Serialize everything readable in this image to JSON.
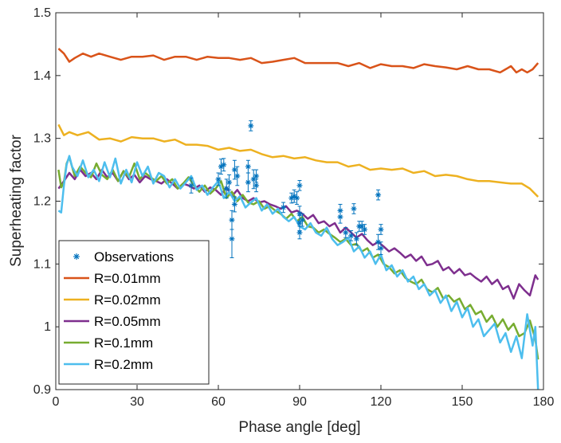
{
  "chart_data": {
    "type": "line",
    "xlabel": "Phase angle [deg]",
    "ylabel": "Superheating factor",
    "xlim": [
      0,
      180
    ],
    "ylim": [
      0.9,
      1.5
    ],
    "xticks": [
      0,
      30,
      60,
      90,
      120,
      150,
      180
    ],
    "yticks": [
      0.9,
      1,
      1.1,
      1.2,
      1.3,
      1.4,
      1.5
    ],
    "ytick_labels": [
      "0.9",
      "1",
      "1.1",
      "1.2",
      "1.3",
      "1.4",
      "1.5"
    ],
    "grid": false,
    "legend_position": "bottom-left",
    "series": [
      {
        "name": "R=0.01mm",
        "color": "#D95319",
        "x": [
          1,
          3,
          5,
          7,
          10,
          13,
          16,
          20,
          24,
          28,
          32,
          36,
          40,
          44,
          48,
          52,
          56,
          60,
          64,
          68,
          72,
          76,
          80,
          84,
          88,
          92,
          96,
          100,
          104,
          108,
          112,
          116,
          120,
          124,
          128,
          132,
          136,
          140,
          144,
          148,
          152,
          156,
          160,
          164,
          166,
          168,
          170,
          172,
          174,
          176,
          178
        ],
        "y": [
          1.443,
          1.435,
          1.422,
          1.428,
          1.435,
          1.43,
          1.435,
          1.43,
          1.425,
          1.43,
          1.43,
          1.432,
          1.425,
          1.43,
          1.43,
          1.425,
          1.43,
          1.428,
          1.428,
          1.425,
          1.428,
          1.42,
          1.422,
          1.425,
          1.428,
          1.42,
          1.42,
          1.42,
          1.42,
          1.415,
          1.42,
          1.412,
          1.418,
          1.415,
          1.415,
          1.412,
          1.418,
          1.415,
          1.413,
          1.41,
          1.415,
          1.41,
          1.41,
          1.405,
          1.41,
          1.415,
          1.405,
          1.41,
          1.405,
          1.41,
          1.42
        ]
      },
      {
        "name": "R=0.02mm",
        "color": "#EDB120",
        "x": [
          1,
          3,
          5,
          8,
          12,
          16,
          20,
          24,
          28,
          32,
          36,
          40,
          44,
          48,
          52,
          56,
          60,
          64,
          68,
          72,
          76,
          80,
          84,
          88,
          92,
          96,
          100,
          104,
          108,
          112,
          116,
          120,
          124,
          128,
          132,
          136,
          140,
          144,
          148,
          152,
          156,
          160,
          164,
          168,
          172,
          175,
          178
        ],
        "y": [
          1.322,
          1.305,
          1.31,
          1.305,
          1.31,
          1.298,
          1.3,
          1.295,
          1.302,
          1.3,
          1.3,
          1.295,
          1.298,
          1.29,
          1.29,
          1.288,
          1.282,
          1.285,
          1.28,
          1.282,
          1.275,
          1.27,
          1.272,
          1.268,
          1.27,
          1.265,
          1.262,
          1.262,
          1.255,
          1.258,
          1.25,
          1.252,
          1.25,
          1.252,
          1.245,
          1.248,
          1.24,
          1.242,
          1.24,
          1.235,
          1.232,
          1.232,
          1.23,
          1.228,
          1.228,
          1.22,
          1.207
        ]
      },
      {
        "name": "R=0.05mm",
        "color": "#7E2F8E",
        "x": [
          1,
          3,
          5,
          7,
          9,
          11,
          13,
          15,
          17,
          19,
          21,
          23,
          25,
          27,
          29,
          31,
          33,
          35,
          37,
          39,
          41,
          43,
          45,
          47,
          49,
          51,
          53,
          55,
          57,
          59,
          61,
          63,
          65,
          67,
          69,
          71,
          73,
          75,
          77,
          79,
          81,
          83,
          85,
          87,
          89,
          91,
          93,
          95,
          97,
          99,
          101,
          103,
          105,
          107,
          109,
          111,
          113,
          115,
          117,
          119,
          121,
          123,
          125,
          127,
          129,
          131,
          133,
          135,
          137,
          139,
          141,
          143,
          145,
          147,
          149,
          151,
          153,
          155,
          157,
          159,
          161,
          163,
          165,
          167,
          169,
          171,
          173,
          175,
          177,
          178
        ],
        "y": [
          1.22,
          1.232,
          1.245,
          1.235,
          1.25,
          1.24,
          1.245,
          1.235,
          1.25,
          1.238,
          1.245,
          1.232,
          1.248,
          1.235,
          1.242,
          1.23,
          1.24,
          1.235,
          1.232,
          1.228,
          1.235,
          1.228,
          1.22,
          1.228,
          1.225,
          1.22,
          1.225,
          1.215,
          1.222,
          1.218,
          1.21,
          1.222,
          1.208,
          1.218,
          1.205,
          1.2,
          1.205,
          1.198,
          1.2,
          1.195,
          1.192,
          1.188,
          1.192,
          1.182,
          1.185,
          1.18,
          1.172,
          1.178,
          1.165,
          1.168,
          1.16,
          1.165,
          1.15,
          1.158,
          1.15,
          1.142,
          1.148,
          1.138,
          1.13,
          1.135,
          1.128,
          1.12,
          1.125,
          1.118,
          1.11,
          1.115,
          1.105,
          1.112,
          1.098,
          1.1,
          1.105,
          1.09,
          1.095,
          1.085,
          1.092,
          1.082,
          1.085,
          1.078,
          1.072,
          1.08,
          1.068,
          1.075,
          1.06,
          1.065,
          1.045,
          1.068,
          1.058,
          1.05,
          1.082,
          1.075
        ]
      },
      {
        "name": "R=0.1mm",
        "color": "#77AC30",
        "x": [
          1,
          2,
          3,
          4,
          5,
          7,
          9,
          11,
          13,
          15,
          17,
          19,
          21,
          23,
          25,
          27,
          29,
          31,
          33,
          35,
          37,
          39,
          41,
          43,
          45,
          47,
          49,
          51,
          53,
          55,
          57,
          59,
          61,
          63,
          65,
          67,
          69,
          71,
          73,
          75,
          77,
          79,
          81,
          83,
          85,
          87,
          89,
          91,
          93,
          95,
          97,
          99,
          101,
          103,
          105,
          107,
          109,
          111,
          113,
          115,
          117,
          119,
          121,
          123,
          125,
          127,
          129,
          131,
          133,
          135,
          137,
          139,
          141,
          143,
          145,
          147,
          149,
          151,
          153,
          155,
          157,
          159,
          161,
          163,
          165,
          167,
          169,
          171,
          173,
          175,
          177,
          178
        ],
        "y": [
          1.25,
          1.222,
          1.23,
          1.26,
          1.27,
          1.24,
          1.255,
          1.245,
          1.238,
          1.26,
          1.242,
          1.235,
          1.25,
          1.232,
          1.248,
          1.238,
          1.26,
          1.235,
          1.245,
          1.238,
          1.232,
          1.24,
          1.228,
          1.235,
          1.22,
          1.228,
          1.238,
          1.225,
          1.215,
          1.225,
          1.212,
          1.22,
          1.232,
          1.205,
          1.215,
          1.2,
          1.21,
          1.198,
          1.195,
          1.2,
          1.188,
          1.192,
          1.185,
          1.18,
          1.172,
          1.18,
          1.168,
          1.175,
          1.16,
          1.158,
          1.15,
          1.155,
          1.148,
          1.142,
          1.135,
          1.14,
          1.13,
          1.132,
          1.12,
          1.125,
          1.11,
          1.115,
          1.1,
          1.095,
          1.085,
          1.09,
          1.078,
          1.072,
          1.068,
          1.075,
          1.06,
          1.055,
          1.062,
          1.045,
          1.05,
          1.04,
          1.045,
          1.028,
          1.035,
          1.02,
          1.025,
          1.008,
          1.018,
          1.0,
          1.012,
          0.995,
          1.005,
          0.985,
          0.99,
          1.01,
          0.98,
          0.948
        ]
      },
      {
        "name": "R=0.2mm",
        "color": "#4DBEEE",
        "x": [
          1,
          2,
          3,
          4,
          5,
          6,
          8,
          10,
          12,
          14,
          16,
          18,
          20,
          22,
          24,
          26,
          28,
          30,
          32,
          34,
          36,
          38,
          40,
          42,
          44,
          46,
          48,
          50,
          52,
          54,
          56,
          58,
          60,
          62,
          64,
          66,
          68,
          70,
          72,
          74,
          76,
          78,
          80,
          82,
          84,
          86,
          88,
          90,
          92,
          94,
          96,
          98,
          100,
          102,
          104,
          106,
          108,
          110,
          112,
          114,
          116,
          118,
          120,
          122,
          124,
          126,
          128,
          130,
          132,
          134,
          136,
          138,
          140,
          142,
          144,
          146,
          148,
          150,
          152,
          154,
          156,
          158,
          160,
          162,
          164,
          166,
          168,
          170,
          172,
          174,
          176,
          177,
          178
        ],
        "y": [
          1.185,
          1.182,
          1.225,
          1.258,
          1.272,
          1.255,
          1.24,
          1.265,
          1.238,
          1.25,
          1.232,
          1.262,
          1.238,
          1.268,
          1.228,
          1.25,
          1.23,
          1.262,
          1.24,
          1.255,
          1.228,
          1.245,
          1.24,
          1.222,
          1.235,
          1.22,
          1.23,
          1.24,
          1.218,
          1.225,
          1.21,
          1.222,
          1.232,
          1.205,
          1.215,
          1.2,
          1.208,
          1.19,
          1.198,
          1.205,
          1.185,
          1.195,
          1.18,
          1.188,
          1.175,
          1.168,
          1.175,
          1.16,
          1.155,
          1.165,
          1.15,
          1.145,
          1.158,
          1.14,
          1.13,
          1.135,
          1.142,
          1.12,
          1.128,
          1.11,
          1.12,
          1.1,
          1.115,
          1.09,
          1.098,
          1.08,
          1.09,
          1.072,
          1.08,
          1.06,
          1.068,
          1.05,
          1.058,
          1.038,
          1.05,
          1.025,
          1.04,
          1.015,
          1.03,
          1.0,
          1.012,
          0.985,
          0.995,
          1.005,
          0.975,
          0.99,
          0.96,
          0.985,
          0.95,
          1.02,
          0.97,
          1.0,
          0.9
        ]
      }
    ],
    "observations": {
      "name": "Observations",
      "color": "#0072BD",
      "marker": "asterisk",
      "points": [
        {
          "x": 50,
          "y": 1.225,
          "err": 0.012
        },
        {
          "x": 60,
          "y": 1.235,
          "err": 0.01
        },
        {
          "x": 61,
          "y": 1.255,
          "err": 0.012
        },
        {
          "x": 62,
          "y": 1.258,
          "err": 0.01
        },
        {
          "x": 63,
          "y": 1.22,
          "err": 0.015
        },
        {
          "x": 64,
          "y": 1.23,
          "err": 0.012
        },
        {
          "x": 65,
          "y": 1.17,
          "err": 0.015
        },
        {
          "x": 65,
          "y": 1.14,
          "err": 0.03
        },
        {
          "x": 66,
          "y": 1.195,
          "err": 0.012
        },
        {
          "x": 66,
          "y": 1.25,
          "err": 0.015
        },
        {
          "x": 67,
          "y": 1.24,
          "err": 0.015
        },
        {
          "x": 71,
          "y": 1.23,
          "err": 0.015
        },
        {
          "x": 71,
          "y": 1.255,
          "err": 0.01
        },
        {
          "x": 72,
          "y": 1.32,
          "err": 0.008
        },
        {
          "x": 73,
          "y": 1.235,
          "err": 0.015
        },
        {
          "x": 74,
          "y": 1.24,
          "err": 0.01
        },
        {
          "x": 74,
          "y": 1.225,
          "err": 0.01
        },
        {
          "x": 84,
          "y": 1.19,
          "err": 0.008
        },
        {
          "x": 87,
          "y": 1.205,
          "err": 0.008
        },
        {
          "x": 88,
          "y": 1.208,
          "err": 0.01
        },
        {
          "x": 89,
          "y": 1.205,
          "err": 0.01
        },
        {
          "x": 90,
          "y": 1.225,
          "err": 0.008
        },
        {
          "x": 90,
          "y": 1.18,
          "err": 0.012
        },
        {
          "x": 90,
          "y": 1.165,
          "err": 0.012
        },
        {
          "x": 90,
          "y": 1.15,
          "err": 0.01
        },
        {
          "x": 91,
          "y": 1.17,
          "err": 0.01
        },
        {
          "x": 105,
          "y": 1.185,
          "err": 0.01
        },
        {
          "x": 105,
          "y": 1.175,
          "err": 0.01
        },
        {
          "x": 107,
          "y": 1.15,
          "err": 0.008
        },
        {
          "x": 109,
          "y": 1.145,
          "err": 0.008
        },
        {
          "x": 110,
          "y": 1.188,
          "err": 0.008
        },
        {
          "x": 111,
          "y": 1.14,
          "err": 0.01
        },
        {
          "x": 112,
          "y": 1.16,
          "err": 0.008
        },
        {
          "x": 113,
          "y": 1.16,
          "err": 0.008
        },
        {
          "x": 114,
          "y": 1.155,
          "err": 0.008
        },
        {
          "x": 119,
          "y": 1.21,
          "err": 0.008
        },
        {
          "x": 119,
          "y": 1.135,
          "err": 0.012
        },
        {
          "x": 120,
          "y": 1.155,
          "err": 0.008
        },
        {
          "x": 120,
          "y": 1.125,
          "err": 0.01
        }
      ]
    }
  }
}
